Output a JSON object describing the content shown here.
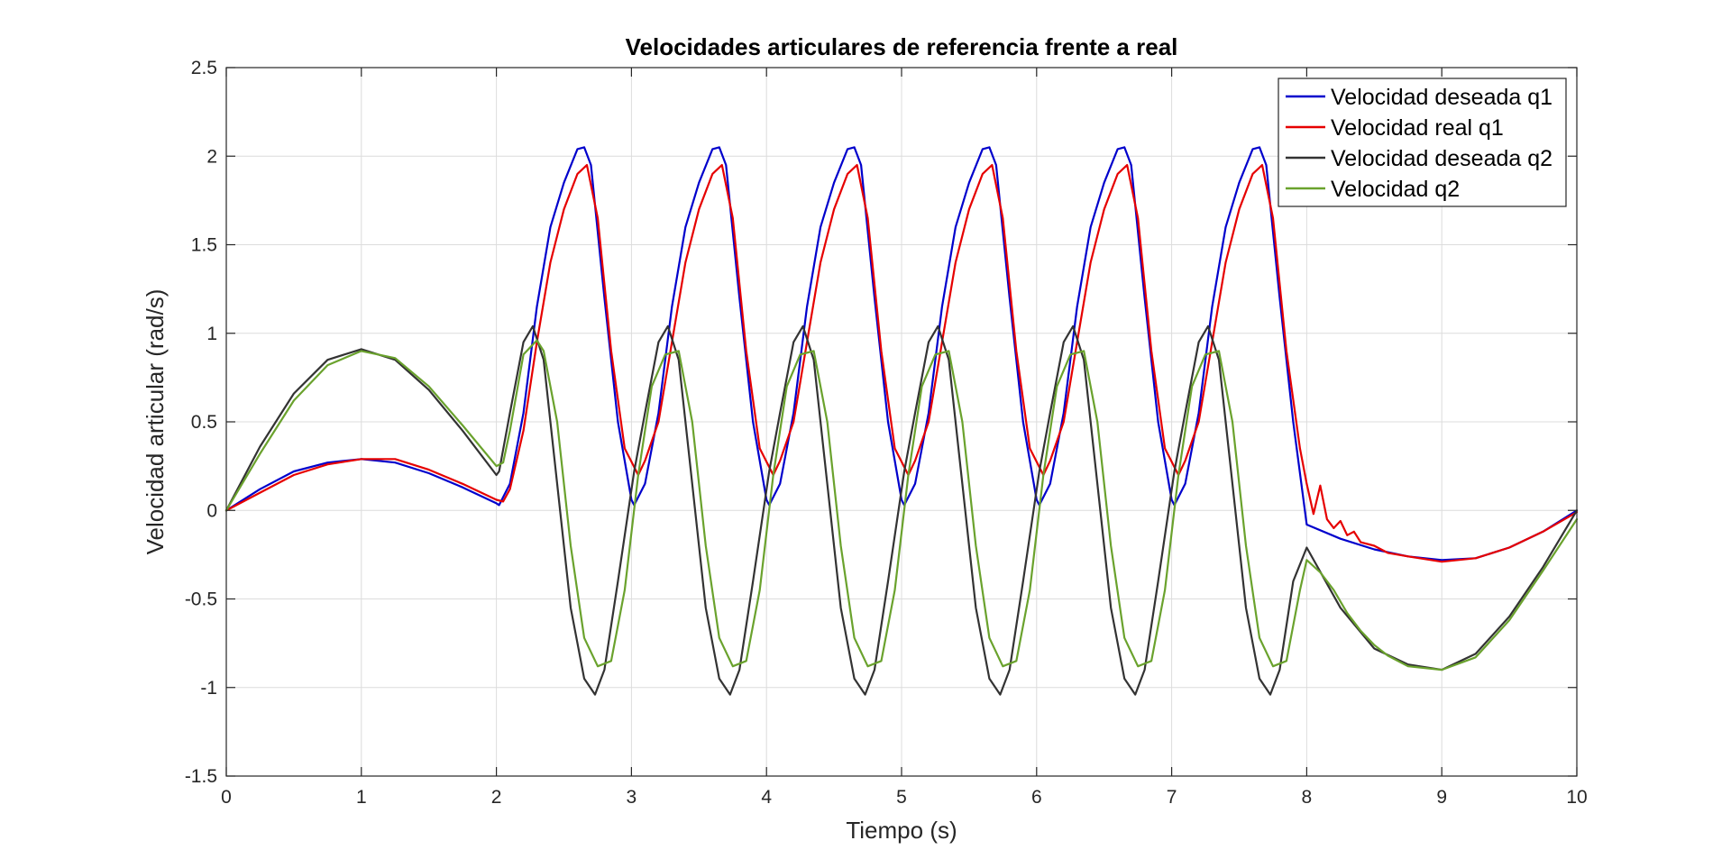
{
  "chart_data": {
    "type": "line",
    "title": "Velocidades articulares de referencia frente a real",
    "xlabel": "Tiempo (s)",
    "ylabel": "Velocidad articular (rad/s)",
    "xlim": [
      0,
      10
    ],
    "ylim": [
      -1.5,
      2.5
    ],
    "xticks": [
      0,
      1,
      2,
      3,
      4,
      5,
      6,
      7,
      8,
      9,
      10
    ],
    "xtick_labels": [
      "0",
      "1",
      "2",
      "3",
      "4",
      "5",
      "6",
      "7",
      "8",
      "9",
      "10"
    ],
    "yticks": [
      -1.5,
      -1,
      -0.5,
      0,
      0.5,
      1,
      1.5,
      2,
      2.5
    ],
    "ytick_labels": [
      "-1.5",
      "-1",
      "-0.5",
      "0",
      "0.5",
      "1",
      "1.5",
      "2",
      "2.5"
    ],
    "grid": true,
    "legend_position": "top-right",
    "series": [
      {
        "name": "Velocidad deseada q1",
        "color": "#0000cc",
        "x": [
          0,
          0.25,
          0.5,
          0.75,
          1.0,
          1.25,
          1.5,
          1.75,
          2.0,
          2.02,
          2.1,
          2.2,
          2.3,
          2.4,
          2.5,
          2.6,
          2.65,
          2.7,
          2.8,
          2.9,
          3.0,
          3.02,
          3.1,
          3.2,
          3.3,
          3.4,
          3.5,
          3.6,
          3.65,
          3.7,
          3.8,
          3.9,
          4.0,
          4.02,
          4.1,
          4.2,
          4.3,
          4.4,
          4.5,
          4.6,
          4.65,
          4.7,
          4.8,
          4.9,
          5.0,
          5.02,
          5.1,
          5.2,
          5.3,
          5.4,
          5.5,
          5.6,
          5.65,
          5.7,
          5.8,
          5.9,
          6.0,
          6.02,
          6.1,
          6.2,
          6.3,
          6.4,
          6.5,
          6.6,
          6.65,
          6.7,
          6.8,
          6.9,
          7.0,
          7.02,
          7.1,
          7.2,
          7.3,
          7.4,
          7.5,
          7.6,
          7.65,
          7.7,
          7.8,
          7.9,
          8.0,
          8.25,
          8.5,
          8.75,
          9.0,
          9.25,
          9.5,
          9.75,
          10.0
        ],
        "y": [
          0,
          0.12,
          0.22,
          0.27,
          0.29,
          0.27,
          0.21,
          0.13,
          0.04,
          0.03,
          0.15,
          0.55,
          1.15,
          1.6,
          1.85,
          2.04,
          2.05,
          1.95,
          1.2,
          0.5,
          0.06,
          0.03,
          0.15,
          0.55,
          1.15,
          1.6,
          1.85,
          2.04,
          2.05,
          1.95,
          1.2,
          0.5,
          0.06,
          0.03,
          0.15,
          0.55,
          1.15,
          1.6,
          1.85,
          2.04,
          2.05,
          1.95,
          1.2,
          0.5,
          0.06,
          0.03,
          0.15,
          0.55,
          1.15,
          1.6,
          1.85,
          2.04,
          2.05,
          1.95,
          1.2,
          0.5,
          0.06,
          0.03,
          0.15,
          0.55,
          1.15,
          1.6,
          1.85,
          2.04,
          2.05,
          1.95,
          1.2,
          0.5,
          0.06,
          0.03,
          0.15,
          0.55,
          1.15,
          1.6,
          1.85,
          2.04,
          2.05,
          1.95,
          1.2,
          0.5,
          -0.08,
          -0.16,
          -0.22,
          -0.26,
          -0.28,
          -0.27,
          -0.21,
          -0.12,
          0
        ]
      },
      {
        "name": "Velocidad real q1",
        "color": "#e60000",
        "x": [
          0,
          0.25,
          0.5,
          0.75,
          1.0,
          1.25,
          1.5,
          1.75,
          2.0,
          2.05,
          2.1,
          2.2,
          2.3,
          2.4,
          2.5,
          2.6,
          2.67,
          2.75,
          2.85,
          2.95,
          3.05,
          3.1,
          3.2,
          3.3,
          3.4,
          3.5,
          3.6,
          3.67,
          3.75,
          3.85,
          3.95,
          4.05,
          4.1,
          4.2,
          4.3,
          4.4,
          4.5,
          4.6,
          4.67,
          4.75,
          4.85,
          4.95,
          5.05,
          5.1,
          5.2,
          5.3,
          5.4,
          5.5,
          5.6,
          5.67,
          5.75,
          5.85,
          5.95,
          6.05,
          6.1,
          6.2,
          6.3,
          6.4,
          6.5,
          6.6,
          6.67,
          6.75,
          6.85,
          6.95,
          7.05,
          7.1,
          7.2,
          7.3,
          7.4,
          7.5,
          7.6,
          7.67,
          7.75,
          7.85,
          7.95,
          8.0,
          8.05,
          8.1,
          8.15,
          8.2,
          8.25,
          8.3,
          8.35,
          8.4,
          8.5,
          8.6,
          8.75,
          9.0,
          9.25,
          9.5,
          9.75,
          10.0
        ],
        "y": [
          0,
          0.1,
          0.2,
          0.26,
          0.29,
          0.29,
          0.23,
          0.15,
          0.06,
          0.05,
          0.12,
          0.45,
          0.95,
          1.4,
          1.7,
          1.9,
          1.95,
          1.65,
          0.9,
          0.35,
          0.2,
          0.28,
          0.5,
          0.95,
          1.4,
          1.7,
          1.9,
          1.95,
          1.65,
          0.9,
          0.35,
          0.2,
          0.28,
          0.5,
          0.95,
          1.4,
          1.7,
          1.9,
          1.95,
          1.65,
          0.9,
          0.35,
          0.2,
          0.28,
          0.5,
          0.95,
          1.4,
          1.7,
          1.9,
          1.95,
          1.65,
          0.9,
          0.35,
          0.2,
          0.28,
          0.5,
          0.95,
          1.4,
          1.7,
          1.9,
          1.95,
          1.65,
          0.9,
          0.35,
          0.2,
          0.28,
          0.5,
          0.95,
          1.4,
          1.7,
          1.9,
          1.95,
          1.65,
          0.9,
          0.35,
          0.15,
          -0.02,
          0.14,
          -0.05,
          -0.1,
          -0.06,
          -0.14,
          -0.12,
          -0.18,
          -0.2,
          -0.24,
          -0.26,
          -0.29,
          -0.27,
          -0.21,
          -0.12,
          -0.01
        ]
      },
      {
        "name": "Velocidad deseada q2",
        "color": "#333333",
        "x": [
          0,
          0.25,
          0.5,
          0.75,
          1.0,
          1.25,
          1.5,
          1.75,
          2.0,
          2.02,
          2.1,
          2.2,
          2.27,
          2.35,
          2.45,
          2.55,
          2.65,
          2.73,
          2.8,
          2.9,
          3.02,
          3.1,
          3.2,
          3.27,
          3.35,
          3.45,
          3.55,
          3.65,
          3.73,
          3.8,
          3.9,
          4.02,
          4.1,
          4.2,
          4.27,
          4.35,
          4.45,
          4.55,
          4.65,
          4.73,
          4.8,
          4.9,
          5.02,
          5.1,
          5.2,
          5.27,
          5.35,
          5.45,
          5.55,
          5.65,
          5.73,
          5.8,
          5.9,
          6.02,
          6.1,
          6.2,
          6.27,
          6.35,
          6.45,
          6.55,
          6.65,
          6.73,
          6.8,
          6.9,
          7.02,
          7.1,
          7.2,
          7.27,
          7.35,
          7.45,
          7.55,
          7.65,
          7.73,
          7.8,
          7.9,
          8.0,
          8.25,
          8.5,
          8.75,
          9.0,
          9.25,
          9.5,
          9.75,
          10.0
        ],
        "y": [
          0,
          0.36,
          0.66,
          0.85,
          0.91,
          0.85,
          0.68,
          0.45,
          0.2,
          0.22,
          0.55,
          0.95,
          1.04,
          0.85,
          0.15,
          -0.55,
          -0.95,
          -1.04,
          -0.9,
          -0.4,
          0.22,
          0.55,
          0.95,
          1.04,
          0.85,
          0.15,
          -0.55,
          -0.95,
          -1.04,
          -0.9,
          -0.4,
          0.22,
          0.55,
          0.95,
          1.04,
          0.85,
          0.15,
          -0.55,
          -0.95,
          -1.04,
          -0.9,
          -0.4,
          0.22,
          0.55,
          0.95,
          1.04,
          0.85,
          0.15,
          -0.55,
          -0.95,
          -1.04,
          -0.9,
          -0.4,
          0.22,
          0.55,
          0.95,
          1.04,
          0.85,
          0.15,
          -0.55,
          -0.95,
          -1.04,
          -0.9,
          -0.4,
          0.22,
          0.55,
          0.95,
          1.04,
          0.85,
          0.15,
          -0.55,
          -0.95,
          -1.04,
          -0.9,
          -0.4,
          -0.21,
          -0.55,
          -0.78,
          -0.87,
          -0.9,
          -0.81,
          -0.6,
          -0.32,
          0
        ]
      },
      {
        "name": "Velocidad q2",
        "color": "#6aa22d",
        "x": [
          0,
          0.25,
          0.5,
          0.75,
          1.0,
          1.25,
          1.5,
          1.75,
          2.0,
          2.05,
          2.1,
          2.2,
          2.3,
          2.35,
          2.45,
          2.55,
          2.65,
          2.75,
          2.85,
          2.95,
          3.05,
          3.15,
          3.25,
          3.35,
          3.45,
          3.55,
          3.65,
          3.75,
          3.85,
          3.95,
          4.05,
          4.15,
          4.25,
          4.35,
          4.45,
          4.55,
          4.65,
          4.75,
          4.85,
          4.95,
          5.05,
          5.15,
          5.25,
          5.35,
          5.45,
          5.55,
          5.65,
          5.75,
          5.85,
          5.95,
          6.05,
          6.15,
          6.25,
          6.35,
          6.45,
          6.55,
          6.65,
          6.75,
          6.85,
          6.95,
          7.05,
          7.15,
          7.25,
          7.35,
          7.45,
          7.55,
          7.65,
          7.75,
          7.85,
          7.95,
          8.0,
          8.1,
          8.2,
          8.3,
          8.4,
          8.5,
          8.6,
          8.75,
          9.0,
          9.25,
          9.5,
          9.75,
          10.0
        ],
        "y": [
          0,
          0.32,
          0.62,
          0.82,
          0.9,
          0.86,
          0.7,
          0.48,
          0.25,
          0.27,
          0.45,
          0.88,
          0.96,
          0.9,
          0.5,
          -0.2,
          -0.72,
          -0.88,
          -0.85,
          -0.45,
          0.2,
          0.7,
          0.88,
          0.9,
          0.5,
          -0.2,
          -0.72,
          -0.88,
          -0.85,
          -0.45,
          0.2,
          0.7,
          0.88,
          0.9,
          0.5,
          -0.2,
          -0.72,
          -0.88,
          -0.85,
          -0.45,
          0.2,
          0.7,
          0.88,
          0.9,
          0.5,
          -0.2,
          -0.72,
          -0.88,
          -0.85,
          -0.45,
          0.2,
          0.7,
          0.88,
          0.9,
          0.5,
          -0.2,
          -0.72,
          -0.88,
          -0.85,
          -0.45,
          0.2,
          0.7,
          0.88,
          0.9,
          0.5,
          -0.2,
          -0.72,
          -0.88,
          -0.85,
          -0.45,
          -0.28,
          -0.35,
          -0.45,
          -0.58,
          -0.68,
          -0.76,
          -0.82,
          -0.88,
          -0.9,
          -0.83,
          -0.62,
          -0.34,
          -0.05
        ]
      }
    ]
  }
}
